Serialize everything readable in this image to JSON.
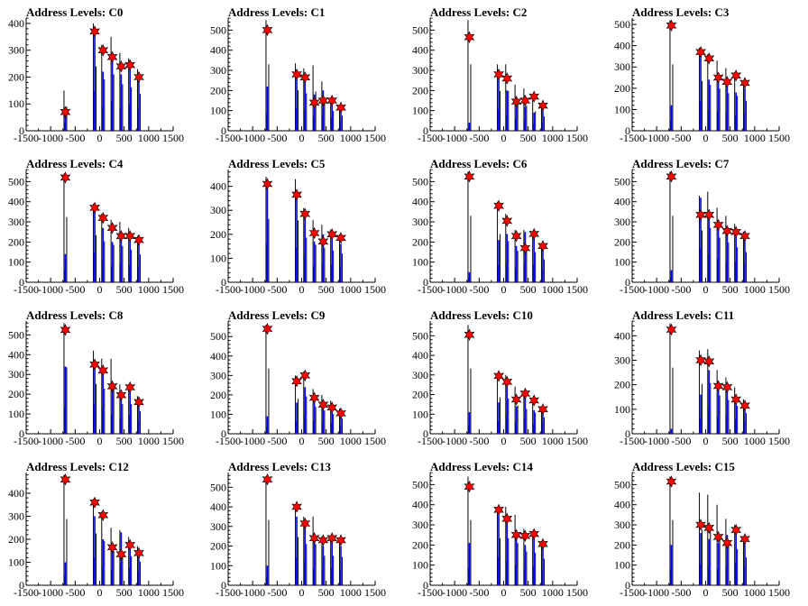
{
  "colors": {
    "background": "#ffffff",
    "axis": "#000000",
    "histogram_black": "#000000",
    "histogram_blue": "#0000ff",
    "marker_fill": "#ff0000",
    "marker_stroke": "#000000"
  },
  "chart_data": [
    {
      "type": "bar",
      "title": "Address Levels: C0",
      "xlabel": "",
      "ylabel": "",
      "xlim": [
        -1500,
        1500
      ],
      "ylim": [
        0,
        420
      ],
      "yticks": [
        0,
        100,
        200,
        300,
        400
      ],
      "xticks": [
        -1500,
        -1000,
        -500,
        0,
        500,
        1000,
        1500
      ],
      "x": [
        -700,
        -100,
        70,
        260,
        440,
        620,
        800
      ],
      "black": [
        150,
        400,
        320,
        350,
        290,
        270,
        230
      ],
      "blue": [
        70,
        370,
        220,
        280,
        210,
        250,
        200
      ],
      "peaks": [
        70,
        370,
        300,
        275,
        240,
        245,
        200
      ]
    },
    {
      "type": "bar",
      "title": "Address Levels: C1",
      "xlabel": "",
      "ylabel": "",
      "xlim": [
        -1500,
        1500
      ],
      "ylim": [
        0,
        560
      ],
      "yticks": [
        0,
        100,
        200,
        300,
        400,
        500
      ],
      "xticks": [
        -1500,
        -1000,
        -500,
        0,
        500,
        1000,
        1500
      ],
      "x": [
        -700,
        -100,
        70,
        260,
        440,
        620,
        800
      ],
      "black": [
        550,
        335,
        310,
        325,
        245,
        165,
        125
      ],
      "blue": [
        220,
        280,
        250,
        180,
        200,
        160,
        115
      ],
      "peaks": [
        500,
        280,
        265,
        140,
        150,
        150,
        115
      ]
    },
    {
      "type": "bar",
      "title": "Address Levels: C2",
      "xlabel": "",
      "ylabel": "",
      "xlim": [
        -1500,
        1500
      ],
      "ylim": [
        0,
        560
      ],
      "yticks": [
        0,
        100,
        200,
        300,
        400,
        500
      ],
      "xticks": [
        -1500,
        -1000,
        -500,
        0,
        500,
        1000,
        1500
      ],
      "x": [
        -700,
        -100,
        70,
        260,
        440,
        620,
        800
      ],
      "black": [
        550,
        330,
        330,
        230,
        210,
        160,
        120
      ],
      "blue": [
        40,
        270,
        200,
        150,
        120,
        90,
        100
      ],
      "peaks": [
        465,
        280,
        260,
        145,
        150,
        170,
        125
      ]
    },
    {
      "type": "bar",
      "title": "Address Levels: C3",
      "xlabel": "",
      "ylabel": "",
      "xlim": [
        -1500,
        1500
      ],
      "ylim": [
        0,
        530
      ],
      "yticks": [
        0,
        100,
        200,
        300,
        400,
        500
      ],
      "xticks": [
        -1500,
        -1000,
        -500,
        0,
        500,
        1000,
        1500
      ],
      "x": [
        -700,
        -100,
        70,
        260,
        440,
        620,
        800
      ],
      "black": [
        520,
        390,
        360,
        330,
        295,
        275,
        235
      ],
      "blue": [
        120,
        350,
        240,
        230,
        220,
        180,
        200
      ],
      "peaks": [
        495,
        370,
        340,
        250,
        230,
        260,
        225
      ]
    },
    {
      "type": "bar",
      "title": "Address Levels: C4",
      "xlabel": "",
      "ylabel": "",
      "xlim": [
        -1500,
        1500
      ],
      "ylim": [
        0,
        560
      ],
      "yticks": [
        0,
        100,
        200,
        300,
        400,
        500
      ],
      "xticks": [
        -1500,
        -1000,
        -500,
        0,
        500,
        1000,
        1500
      ],
      "x": [
        -700,
        -100,
        70,
        260,
        440,
        620,
        800
      ],
      "black": [
        540,
        390,
        340,
        310,
        300,
        270,
        230
      ],
      "blue": [
        140,
        370,
        270,
        200,
        220,
        210,
        190
      ],
      "peaks": [
        520,
        370,
        320,
        270,
        230,
        230,
        210
      ]
    },
    {
      "type": "bar",
      "title": "Address Levels: C5",
      "xlabel": "",
      "ylabel": "",
      "xlim": [
        -1500,
        1500
      ],
      "ylim": [
        0,
        470
      ],
      "yticks": [
        0,
        100,
        200,
        300,
        400
      ],
      "xticks": [
        -1500,
        -1000,
        -500,
        0,
        500,
        1000,
        1500
      ],
      "x": [
        -700,
        -100,
        70,
        260,
        440,
        620,
        800
      ],
      "black": [
        440,
        430,
        310,
        260,
        240,
        220,
        200
      ],
      "blue": [
        400,
        360,
        280,
        170,
        200,
        180,
        160
      ],
      "peaks": [
        410,
        365,
        285,
        205,
        170,
        200,
        185
      ]
    },
    {
      "type": "bar",
      "title": "Address Levels: C6",
      "xlabel": "",
      "ylabel": "",
      "xlim": [
        -1500,
        1500
      ],
      "ylim": [
        0,
        560
      ],
      "yticks": [
        0,
        100,
        200,
        300,
        400,
        500
      ],
      "xticks": [
        -1500,
        -1000,
        -500,
        0,
        500,
        1000,
        1500
      ],
      "x": [
        -700,
        -100,
        70,
        260,
        440,
        620,
        800
      ],
      "black": [
        550,
        400,
        340,
        260,
        260,
        250,
        190
      ],
      "blue": [
        50,
        210,
        240,
        180,
        250,
        220,
        160
      ],
      "peaks": [
        525,
        380,
        305,
        230,
        170,
        240,
        180
      ]
    },
    {
      "type": "bar",
      "title": "Address Levels: C7",
      "xlabel": "",
      "ylabel": "",
      "xlim": [
        -1500,
        1500
      ],
      "ylim": [
        0,
        560
      ],
      "yticks": [
        0,
        100,
        200,
        300,
        400,
        500
      ],
      "xticks": [
        -1500,
        -1000,
        -500,
        0,
        500,
        1000,
        1500
      ],
      "x": [
        -700,
        -100,
        70,
        260,
        440,
        620,
        800
      ],
      "black": [
        550,
        430,
        450,
        370,
        330,
        290,
        250
      ],
      "blue": [
        60,
        420,
        340,
        300,
        260,
        250,
        220
      ],
      "peaks": [
        525,
        335,
        335,
        285,
        255,
        250,
        230
      ]
    },
    {
      "type": "bar",
      "title": "Address Levels: C8",
      "xlabel": "",
      "ylabel": "",
      "xlim": [
        -1500,
        1500
      ],
      "ylim": [
        0,
        570
      ],
      "yticks": [
        0,
        100,
        200,
        300,
        400,
        500
      ],
      "xticks": [
        -1500,
        -1000,
        -500,
        0,
        500,
        1000,
        1500
      ],
      "x": [
        -700,
        -100,
        70,
        260,
        440,
        620,
        800
      ],
      "black": [
        560,
        420,
        380,
        380,
        250,
        250,
        190
      ],
      "blue": [
        340,
        370,
        330,
        240,
        200,
        240,
        160
      ],
      "peaks": [
        525,
        350,
        320,
        240,
        195,
        235,
        160
      ]
    },
    {
      "type": "bar",
      "title": "Address Levels: C9",
      "xlabel": "",
      "ylabel": "",
      "xlim": [
        -1500,
        1500
      ],
      "ylim": [
        0,
        580
      ],
      "yticks": [
        0,
        100,
        200,
        300,
        400,
        500
      ],
      "xticks": [
        -1500,
        -1000,
        -500,
        0,
        500,
        1000,
        1500
      ],
      "x": [
        -700,
        -100,
        70,
        260,
        440,
        620,
        800
      ],
      "black": [
        560,
        300,
        320,
        230,
        200,
        170,
        130
      ],
      "blue": [
        90,
        160,
        240,
        170,
        140,
        140,
        100
      ],
      "peaks": [
        540,
        270,
        300,
        185,
        150,
        135,
        105
      ]
    },
    {
      "type": "bar",
      "title": "Address Levels: C10",
      "xlabel": "",
      "ylabel": "",
      "xlim": [
        -1500,
        1500
      ],
      "ylim": [
        0,
        575
      ],
      "yticks": [
        0,
        100,
        200,
        300,
        400,
        500
      ],
      "xticks": [
        -1500,
        -1000,
        -500,
        0,
        500,
        1000,
        1500
      ],
      "x": [
        -700,
        -100,
        70,
        260,
        440,
        620,
        800
      ],
      "black": [
        555,
        310,
        300,
        240,
        210,
        180,
        140
      ],
      "blue": [
        110,
        160,
        240,
        140,
        200,
        120,
        140
      ],
      "peaks": [
        505,
        295,
        265,
        175,
        205,
        170,
        125
      ]
    },
    {
      "type": "bar",
      "title": "Address Levels: C11",
      "xlabel": "",
      "ylabel": "",
      "xlim": [
        -1500,
        1500
      ],
      "ylim": [
        0,
        460
      ],
      "yticks": [
        0,
        100,
        200,
        300,
        400
      ],
      "xticks": [
        -1500,
        -1000,
        -500,
        0,
        500,
        1000,
        1500
      ],
      "x": [
        -700,
        -100,
        70,
        260,
        440,
        620,
        800
      ],
      "black": [
        450,
        340,
        345,
        260,
        230,
        190,
        140
      ],
      "blue": [
        20,
        160,
        260,
        180,
        190,
        150,
        120
      ],
      "peaks": [
        425,
        300,
        295,
        195,
        190,
        140,
        115
      ]
    },
    {
      "type": "bar",
      "title": "Address Levels: C12",
      "xlabel": "",
      "ylabel": "",
      "xlim": [
        -1500,
        1500
      ],
      "ylim": [
        0,
        490
      ],
      "yticks": [
        0,
        100,
        200,
        300,
        400
      ],
      "xticks": [
        -1500,
        -1000,
        -500,
        0,
        500,
        1000,
        1500
      ],
      "x": [
        -700,
        -100,
        70,
        260,
        440,
        620,
        800
      ],
      "black": [
        480,
        375,
        320,
        250,
        240,
        210,
        170
      ],
      "blue": [
        100,
        300,
        200,
        170,
        230,
        190,
        150
      ],
      "peaks": [
        460,
        360,
        305,
        165,
        135,
        175,
        140
      ]
    },
    {
      "type": "bar",
      "title": "Address Levels: C13",
      "xlabel": "",
      "ylabel": "",
      "xlim": [
        -1500,
        1500
      ],
      "ylim": [
        0,
        575
      ],
      "yticks": [
        0,
        100,
        200,
        300,
        400,
        500
      ],
      "xticks": [
        -1500,
        -1000,
        -500,
        0,
        500,
        1000,
        1500
      ],
      "x": [
        -700,
        -100,
        70,
        260,
        440,
        620,
        800
      ],
      "black": [
        555,
        410,
        350,
        350,
        250,
        250,
        240
      ],
      "blue": [
        100,
        350,
        320,
        220,
        200,
        220,
        200
      ],
      "peaks": [
        540,
        400,
        315,
        240,
        230,
        240,
        230
      ]
    },
    {
      "type": "bar",
      "title": "Address Levels: C14",
      "xlabel": "",
      "ylabel": "",
      "xlim": [
        -1500,
        1500
      ],
      "ylim": [
        0,
        560
      ],
      "yticks": [
        0,
        100,
        200,
        300,
        400,
        500
      ],
      "xticks": [
        -1500,
        -1000,
        -500,
        0,
        500,
        1000,
        1500
      ],
      "x": [
        -700,
        -100,
        70,
        260,
        440,
        620,
        800
      ],
      "black": [
        540,
        390,
        390,
        350,
        280,
        270,
        220
      ],
      "blue": [
        210,
        350,
        310,
        250,
        200,
        240,
        190
      ],
      "peaks": [
        490,
        375,
        330,
        250,
        245,
        255,
        205
      ]
    },
    {
      "type": "bar",
      "title": "Address Levels: C15",
      "xlabel": "",
      "ylabel": "",
      "xlim": [
        -1500,
        1500
      ],
      "ylim": [
        0,
        560
      ],
      "yticks": [
        0,
        100,
        200,
        300,
        400,
        500
      ],
      "xticks": [
        -1500,
        -1000,
        -500,
        0,
        500,
        1000,
        1500
      ],
      "x": [
        -700,
        -100,
        70,
        260,
        440,
        620,
        800
      ],
      "black": [
        540,
        460,
        450,
        400,
        330,
        300,
        230
      ],
      "blue": [
        200,
        260,
        230,
        210,
        250,
        280,
        230
      ],
      "peaks": [
        515,
        300,
        285,
        240,
        210,
        275,
        230
      ]
    }
  ]
}
